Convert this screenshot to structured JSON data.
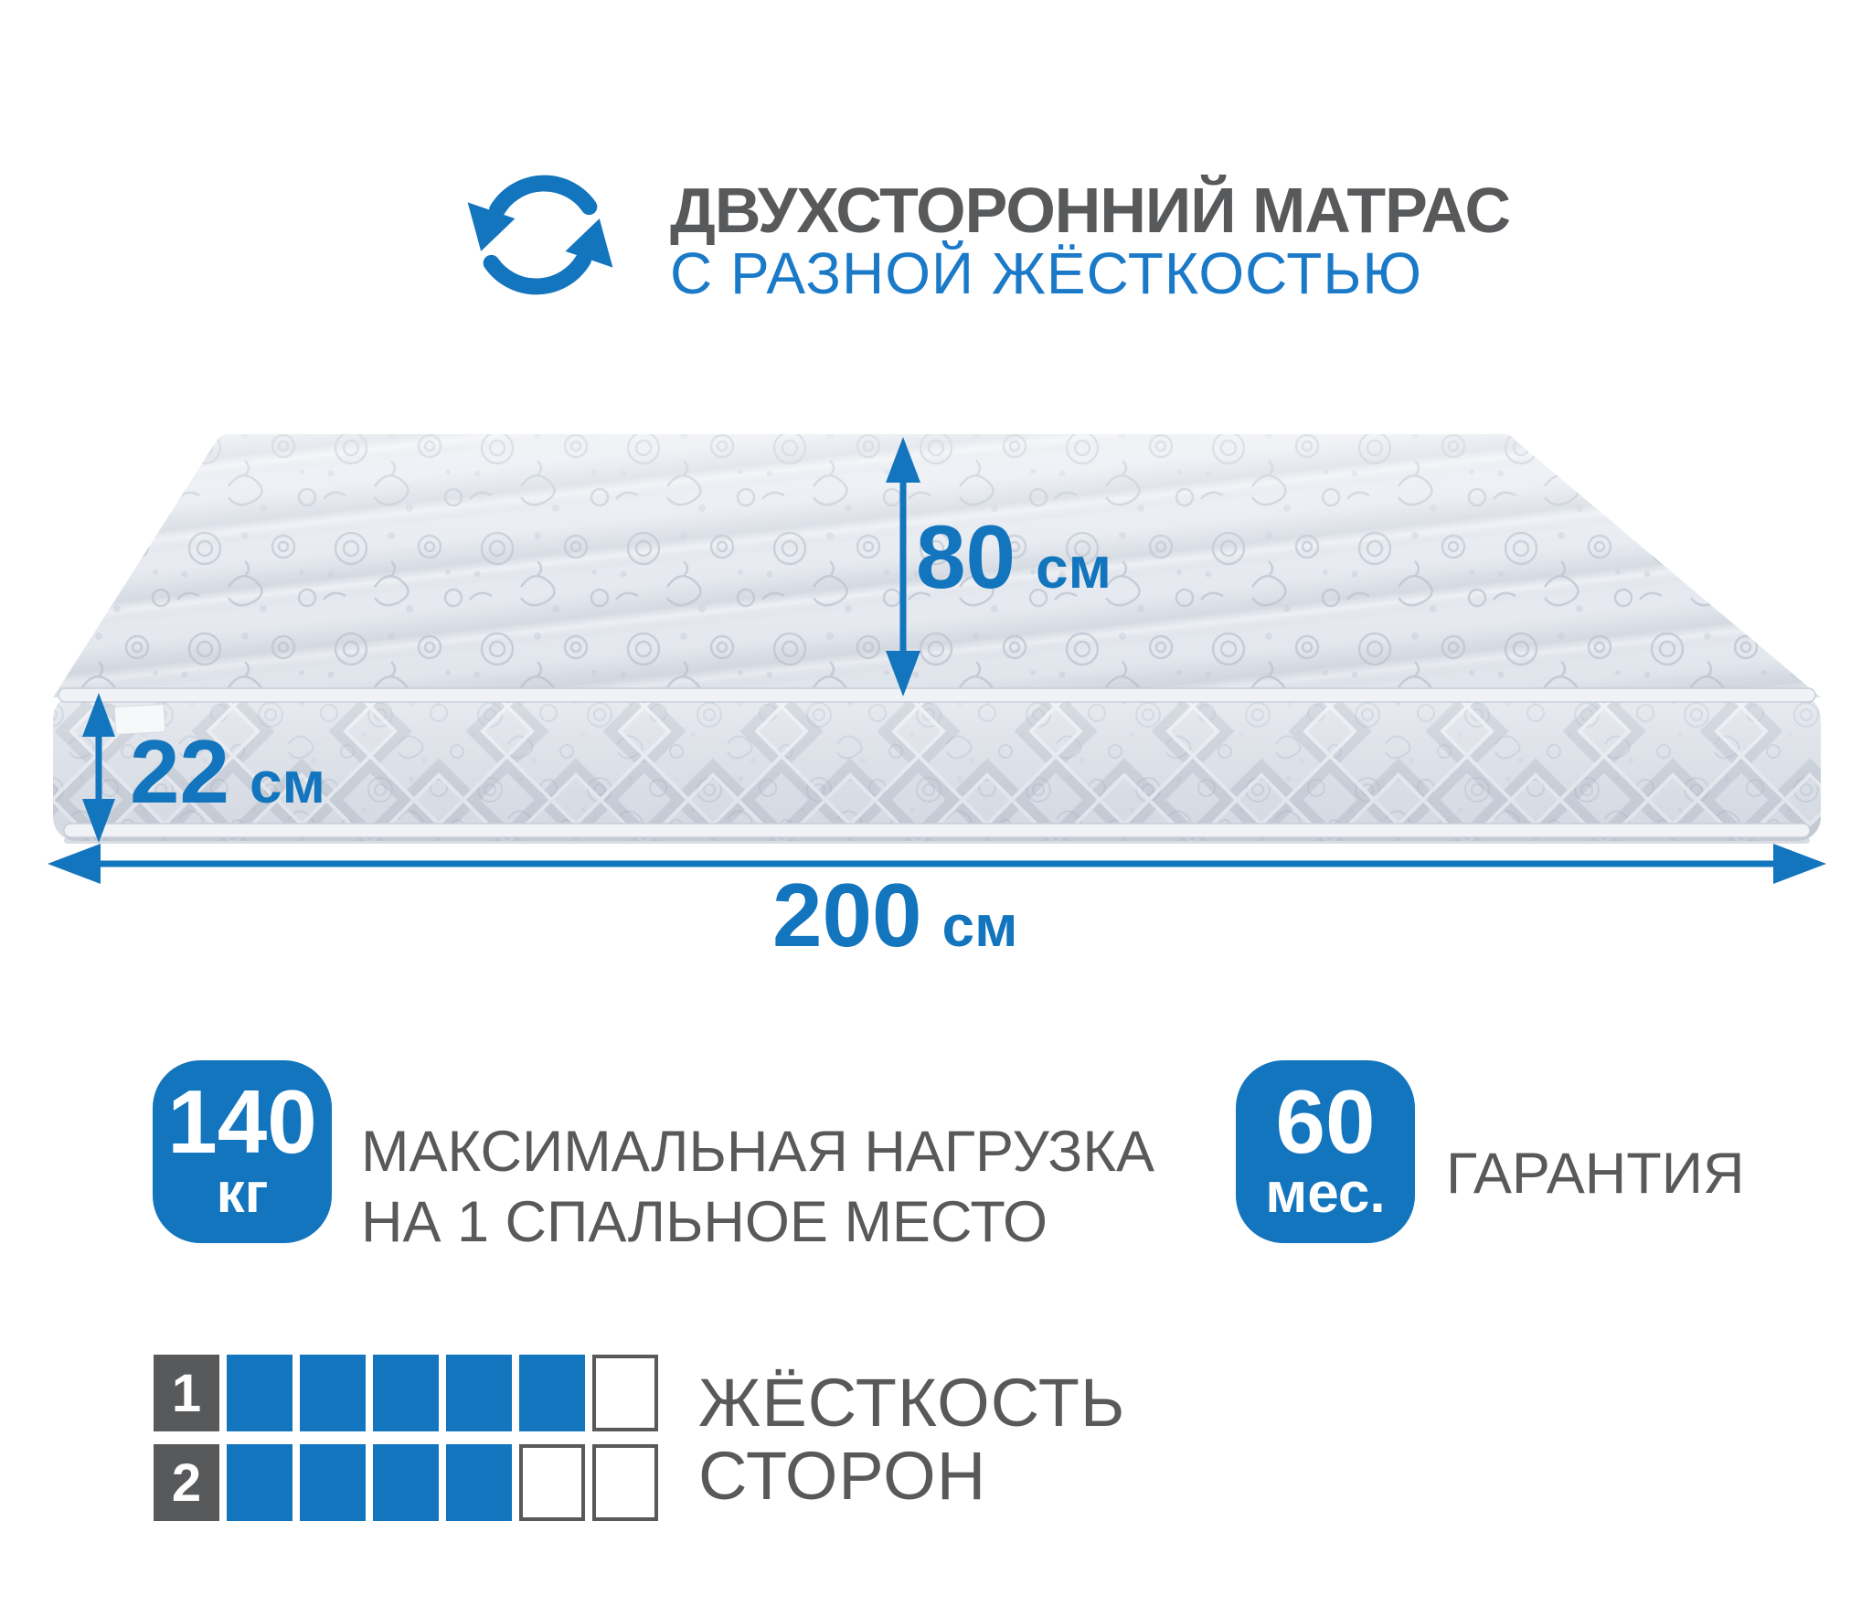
{
  "header": {
    "title": "ДВУХСТОРОННИЙ МАТРАС",
    "subtitle": "С РАЗНОЙ ЖЁСТКОСТЬЮ",
    "icon": "rotate-arrows-icon"
  },
  "dimensions": {
    "depth": {
      "value": "80",
      "unit": "см"
    },
    "height": {
      "value": "22",
      "unit": "см"
    },
    "length": {
      "value": "200",
      "unit": "см"
    }
  },
  "badges": {
    "max_load": {
      "value": "140",
      "unit": "кг",
      "caption_line1": "МАКСИМАЛЬНАЯ НАГРУЗКА",
      "caption_line2": "НА 1 СПАЛЬНОЕ МЕСТО"
    },
    "warranty": {
      "value": "60",
      "unit": "мес.",
      "caption": "ГАРАНТИЯ"
    }
  },
  "firmness": {
    "label_line1": "ЖЁСТКОСТЬ",
    "label_line2": "СТОРОН",
    "scale_max": 6,
    "rows": [
      {
        "side": "1",
        "filled": 5
      },
      {
        "side": "2",
        "filled": 4
      }
    ]
  },
  "colors": {
    "accent_blue": "#1375bd",
    "subtitle_blue": "#1b7ac8",
    "text_gray": "#58595b",
    "mattress_base": "#e6eaf0",
    "mattress_pattern": "#b9c2cf"
  }
}
